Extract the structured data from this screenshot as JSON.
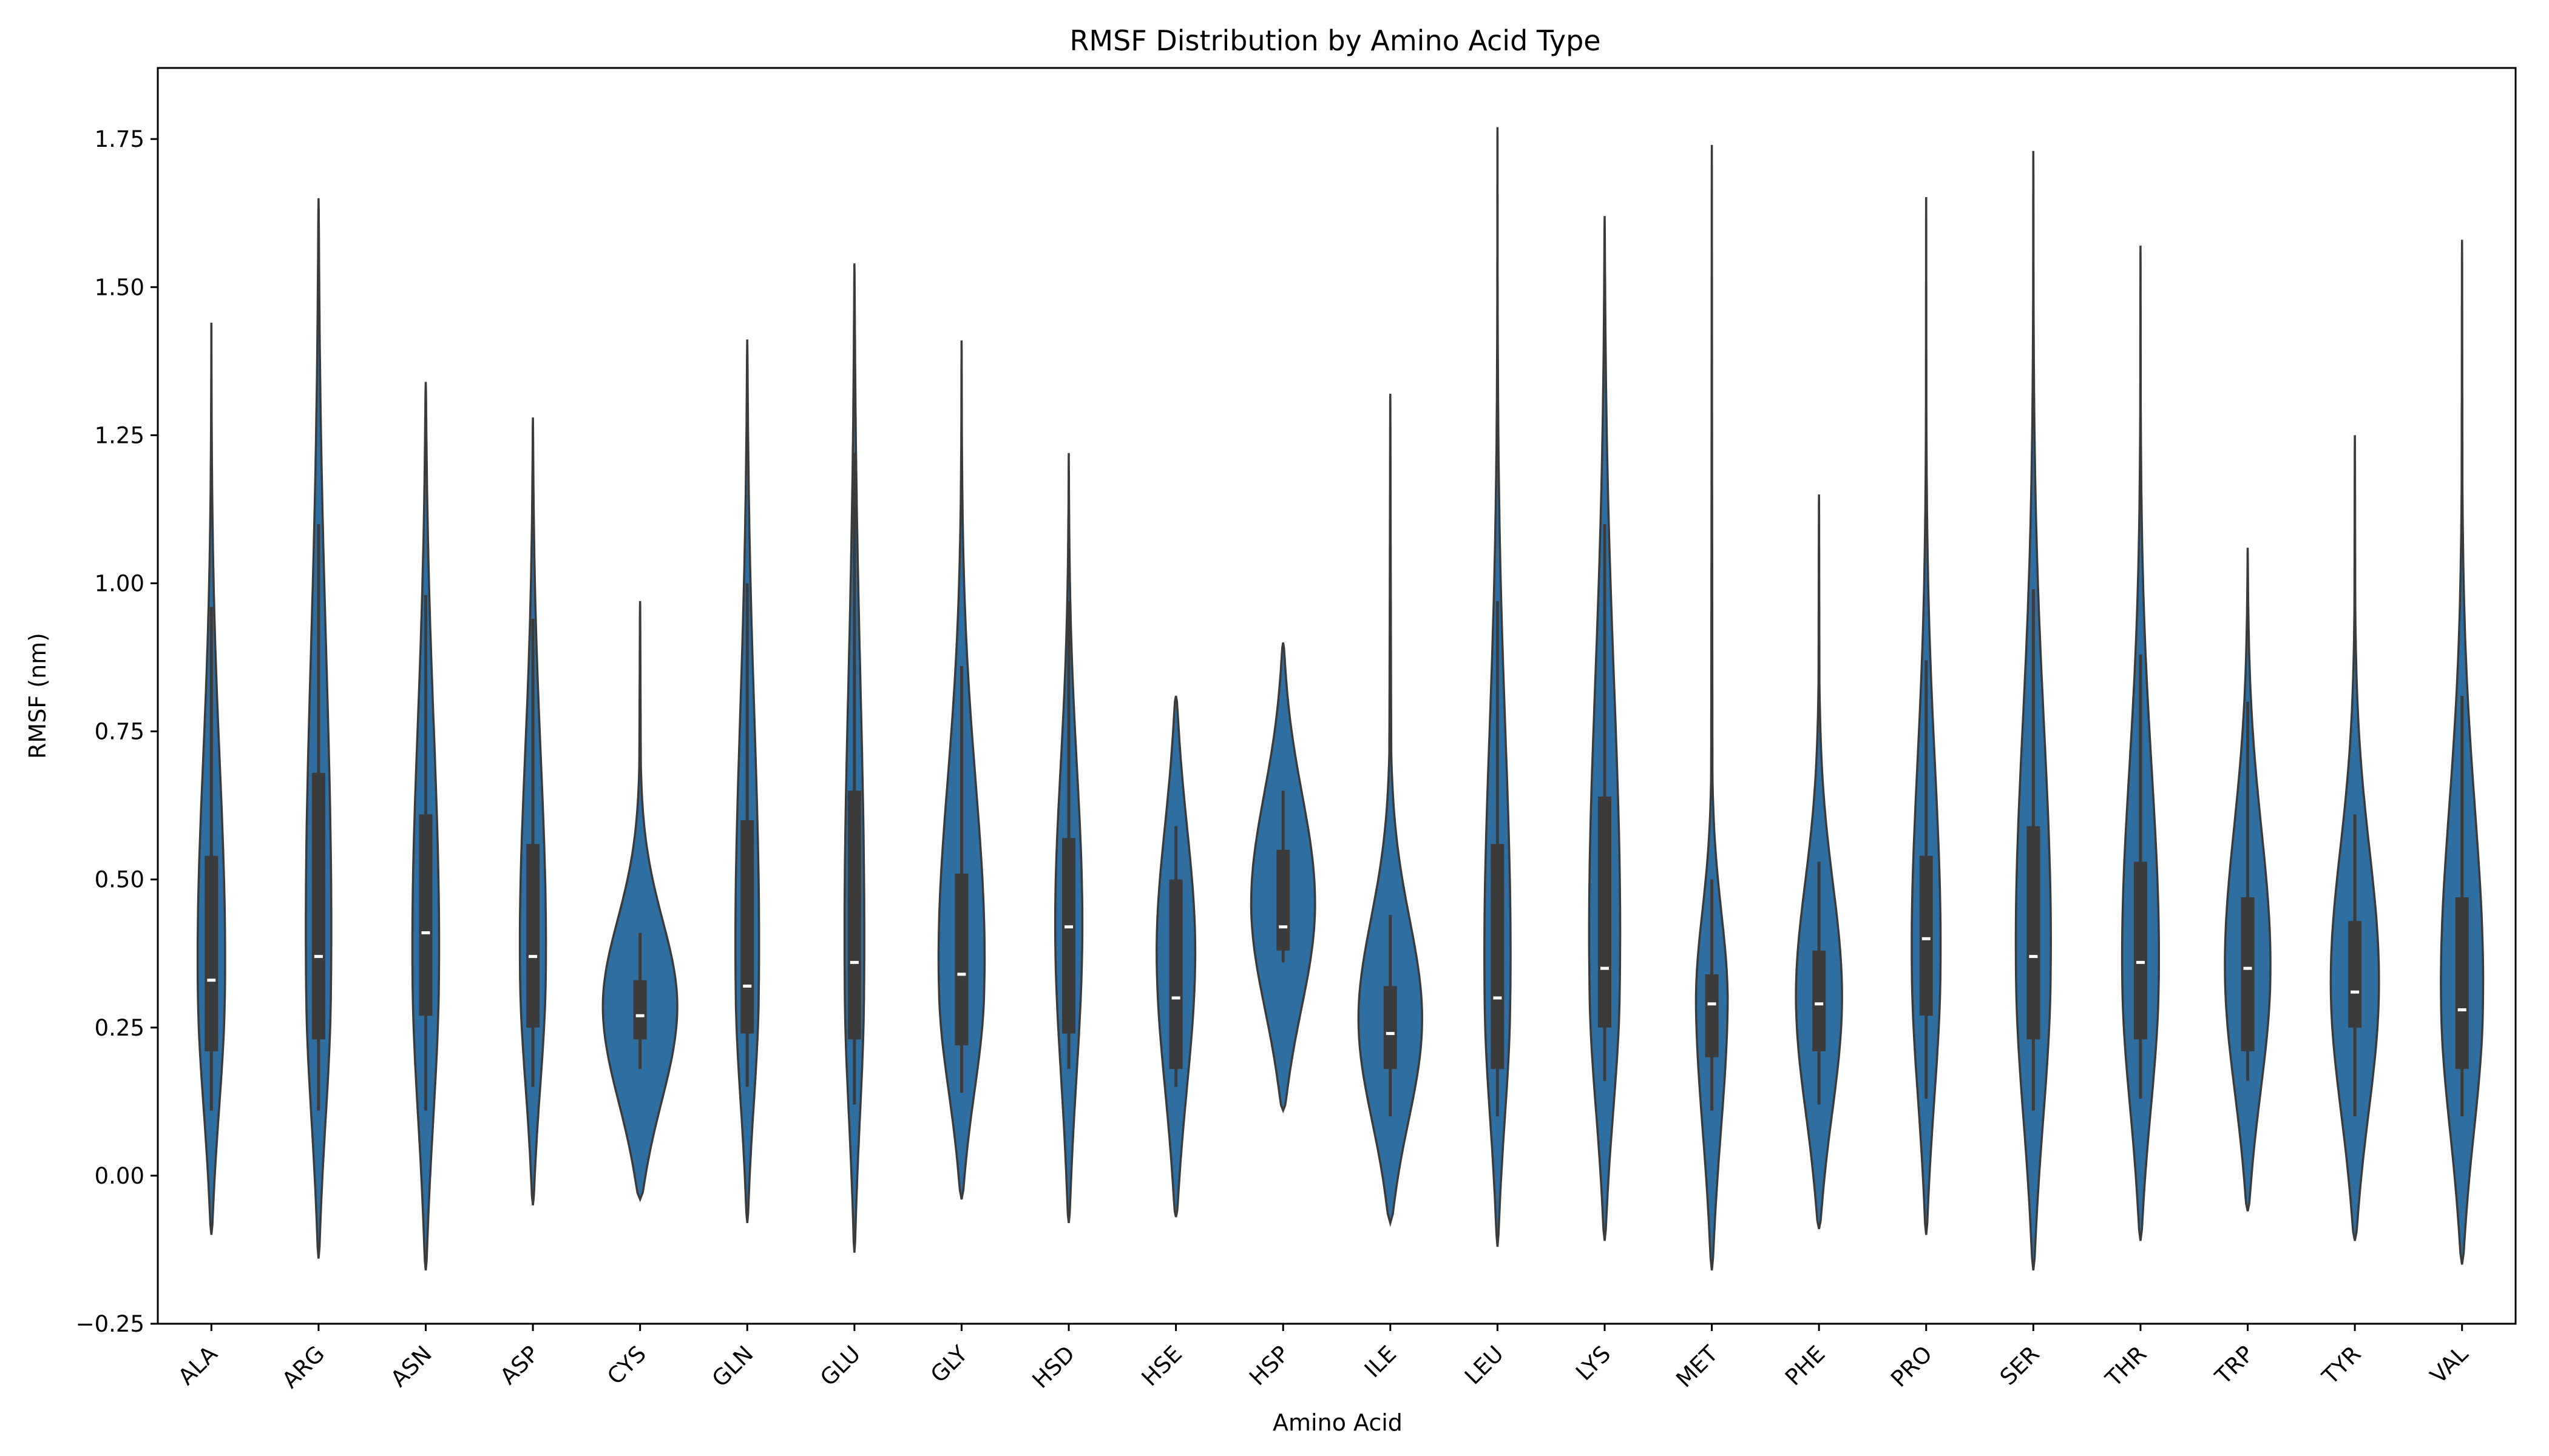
{
  "chart_data": {
    "type": "violin",
    "title": "RMSF Distribution by Amino Acid Type",
    "xlabel": "Amino Acid",
    "ylabel": "RMSF (nm)",
    "ylim": [
      -0.25,
      1.87
    ],
    "yticks": [
      -0.25,
      0.0,
      0.25,
      0.5,
      0.75,
      1.0,
      1.25,
      1.5,
      1.75
    ],
    "ytick_labels": [
      "−0.25",
      "0.00",
      "0.25",
      "0.50",
      "0.75",
      "1.00",
      "1.25",
      "1.50",
      "1.75"
    ],
    "grid": false,
    "legend": "none",
    "fill_color": "#2e6ea0",
    "edge_color": "#3b3b3b",
    "box_color": "#3b3b3b",
    "median_color": "#ffffff",
    "categories": [
      "ALA",
      "ARG",
      "ASN",
      "ASP",
      "CYS",
      "GLN",
      "GLU",
      "GLY",
      "HSD",
      "HSE",
      "HSP",
      "ILE",
      "LEU",
      "LYS",
      "MET",
      "PHE",
      "PRO",
      "SER",
      "THR",
      "TRP",
      "TYR",
      "VAL"
    ],
    "violins": [
      {
        "min": -0.1,
        "max": 1.44,
        "q1": 0.21,
        "median": 0.33,
        "q3": 0.54,
        "whisker_low": 0.11,
        "whisker_high": 0.96,
        "mode": 0.3,
        "max_halfwidth": 0.14
      },
      {
        "min": -0.14,
        "max": 1.65,
        "q1": 0.23,
        "median": 0.37,
        "q3": 0.68,
        "whisker_low": 0.11,
        "whisker_high": 1.1,
        "mode": 0.3,
        "max_halfwidth": 0.13
      },
      {
        "min": -0.16,
        "max": 1.34,
        "q1": 0.27,
        "median": 0.41,
        "q3": 0.61,
        "whisker_low": 0.11,
        "whisker_high": 0.98,
        "mode": 0.33,
        "max_halfwidth": 0.13
      },
      {
        "min": -0.05,
        "max": 1.28,
        "q1": 0.25,
        "median": 0.37,
        "q3": 0.56,
        "whisker_low": 0.15,
        "whisker_high": 0.94,
        "mode": 0.33,
        "max_halfwidth": 0.13
      },
      {
        "min": -0.04,
        "max": 0.97,
        "q1": 0.23,
        "median": 0.27,
        "q3": 0.33,
        "whisker_low": 0.18,
        "whisker_high": 0.41,
        "mode": 0.27,
        "max_halfwidth": 0.37
      },
      {
        "min": -0.08,
        "max": 1.41,
        "q1": 0.24,
        "median": 0.32,
        "q3": 0.6,
        "whisker_low": 0.15,
        "whisker_high": 1.0,
        "mode": 0.3,
        "max_halfwidth": 0.12
      },
      {
        "min": -0.13,
        "max": 1.54,
        "q1": 0.23,
        "median": 0.36,
        "q3": 0.65,
        "whisker_low": 0.12,
        "whisker_high": 1.22,
        "mode": 0.3,
        "max_halfwidth": 0.1
      },
      {
        "min": -0.04,
        "max": 1.41,
        "q1": 0.22,
        "median": 0.34,
        "q3": 0.51,
        "whisker_low": 0.14,
        "whisker_high": 0.86,
        "mode": 0.3,
        "max_halfwidth": 0.24
      },
      {
        "min": -0.08,
        "max": 1.22,
        "q1": 0.24,
        "median": 0.42,
        "q3": 0.57,
        "whisker_low": 0.18,
        "whisker_high": 0.97,
        "mode": 0.4,
        "max_halfwidth": 0.13
      },
      {
        "min": -0.07,
        "max": 0.81,
        "q1": 0.18,
        "median": 0.3,
        "q3": 0.5,
        "whisker_low": 0.15,
        "whisker_high": 0.59,
        "mode": 0.38,
        "max_halfwidth": 0.18
      },
      {
        "min": 0.11,
        "max": 0.9,
        "q1": 0.38,
        "median": 0.42,
        "q3": 0.55,
        "whisker_low": 0.36,
        "whisker_high": 0.65,
        "mode": 0.45,
        "max_halfwidth": 0.3
      },
      {
        "min": -0.08,
        "max": 1.32,
        "q1": 0.18,
        "median": 0.24,
        "q3": 0.32,
        "whisker_low": 0.1,
        "whisker_high": 0.44,
        "mode": 0.24,
        "max_halfwidth": 0.34
      },
      {
        "min": -0.12,
        "max": 1.77,
        "q1": 0.18,
        "median": 0.3,
        "q3": 0.56,
        "whisker_low": 0.1,
        "whisker_high": 0.97,
        "mode": 0.28,
        "max_halfwidth": 0.14
      },
      {
        "min": -0.11,
        "max": 1.62,
        "q1": 0.25,
        "median": 0.35,
        "q3": 0.64,
        "whisker_low": 0.16,
        "whisker_high": 1.1,
        "mode": 0.3,
        "max_halfwidth": 0.16
      },
      {
        "min": -0.16,
        "max": 1.74,
        "q1": 0.2,
        "median": 0.29,
        "q3": 0.34,
        "whisker_low": 0.11,
        "whisker_high": 0.5,
        "mode": 0.28,
        "max_halfwidth": 0.17
      },
      {
        "min": -0.09,
        "max": 1.15,
        "q1": 0.21,
        "median": 0.29,
        "q3": 0.38,
        "whisker_low": 0.12,
        "whisker_high": 0.53,
        "mode": 0.28,
        "max_halfwidth": 0.23
      },
      {
        "min": -0.1,
        "max": 1.65,
        "q1": 0.27,
        "median": 0.4,
        "q3": 0.54,
        "whisker_low": 0.13,
        "whisker_high": 0.87,
        "mode": 0.33,
        "max_halfwidth": 0.15
      },
      {
        "min": -0.16,
        "max": 1.73,
        "q1": 0.23,
        "median": 0.37,
        "q3": 0.59,
        "whisker_low": 0.11,
        "whisker_high": 0.99,
        "mode": 0.32,
        "max_halfwidth": 0.18
      },
      {
        "min": -0.11,
        "max": 1.57,
        "q1": 0.23,
        "median": 0.36,
        "q3": 0.53,
        "whisker_low": 0.13,
        "whisker_high": 0.88,
        "mode": 0.31,
        "max_halfwidth": 0.19
      },
      {
        "min": -0.06,
        "max": 1.06,
        "q1": 0.21,
        "median": 0.35,
        "q3": 0.47,
        "whisker_low": 0.16,
        "whisker_high": 0.8,
        "mode": 0.33,
        "max_halfwidth": 0.22
      },
      {
        "min": -0.11,
        "max": 1.25,
        "q1": 0.25,
        "median": 0.31,
        "q3": 0.43,
        "whisker_low": 0.1,
        "whisker_high": 0.61,
        "mode": 0.3,
        "max_halfwidth": 0.24
      },
      {
        "min": -0.15,
        "max": 1.58,
        "q1": 0.18,
        "median": 0.28,
        "q3": 0.47,
        "whisker_low": 0.1,
        "whisker_high": 0.81,
        "mode": 0.27,
        "max_halfwidth": 0.22
      }
    ]
  }
}
